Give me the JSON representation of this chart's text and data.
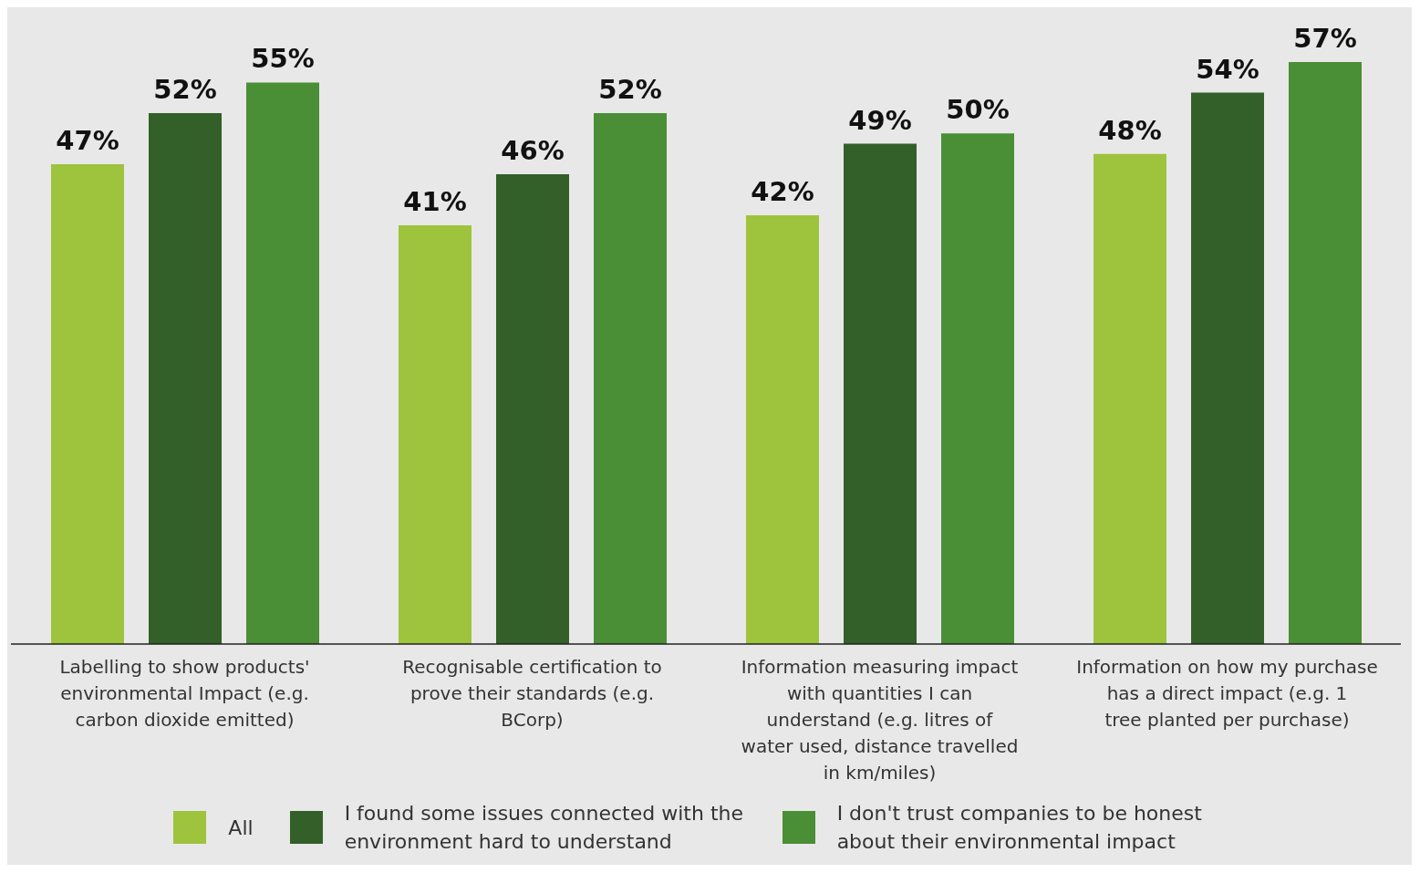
{
  "chart_data": {
    "type": "bar",
    "categories": [
      "Labelling to show  products' environmental Impact (e.g. carbon dioxide emitted)",
      "Recognisable certification to prove their standards (e.g. BCorp)",
      "Information measuring impact with quantities I can understand (e.g. litres of water used, distance travelled in km/miles)",
      "Information on how my purchase has a direct impact (e.g. 1 tree planted per purchase)"
    ],
    "series": [
      {
        "name": "All",
        "color": "#9dc43c",
        "values": [
          47,
          41,
          42,
          48
        ],
        "value_labels": [
          "47%",
          "41%",
          "42%",
          "48%"
        ]
      },
      {
        "name": "I found some issues connected with the environment hard to understand",
        "color": "#335f28",
        "values": [
          52,
          46,
          49,
          54
        ],
        "value_labels": [
          "52%",
          "46%",
          "49%",
          "54%"
        ]
      },
      {
        "name": "I don't trust companies to be honest about their environmental impact",
        "color": "#4a8e35",
        "values": [
          55,
          52,
          50,
          57
        ],
        "value_labels": [
          "55%",
          "52%",
          "50%",
          "57%"
        ]
      }
    ],
    "tick_labels": "x",
    "grid": false,
    "legend": "bottom"
  }
}
